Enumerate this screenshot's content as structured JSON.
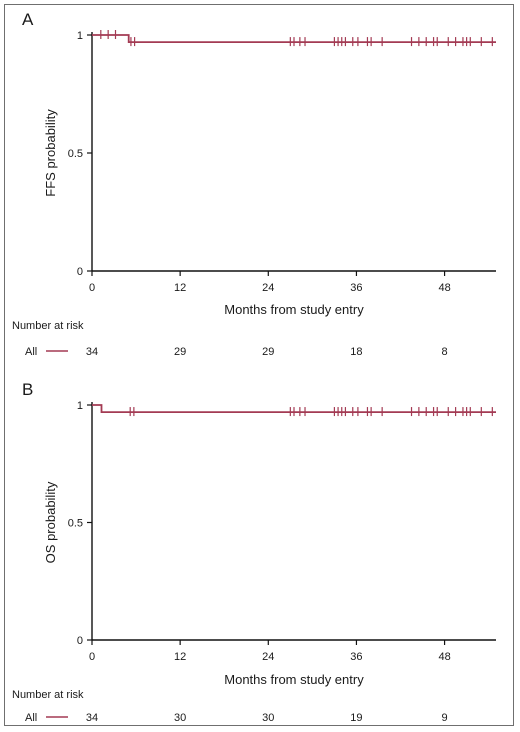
{
  "curve_color": "#a33a53",
  "chart_data": [
    {
      "type": "line",
      "panel_label": "A",
      "ylabel": "FFS probability",
      "xlabel": "Months from study entry",
      "xlim": [
        0,
        55
      ],
      "ylim": [
        0,
        1
      ],
      "xticks": [
        "0",
        "12",
        "24",
        "36",
        "48"
      ],
      "xtick_values": [
        0,
        12,
        24,
        36,
        48
      ],
      "yticks": [
        "0",
        "0.5",
        "1"
      ],
      "ytick_values": [
        0,
        0.5,
        1
      ],
      "series": [
        {
          "step_points": [
            [
              0,
              1
            ],
            [
              5,
              1
            ],
            [
              5,
              0.97
            ],
            [
              55,
              0.97
            ]
          ],
          "censor_times": [
            1.2,
            2.2,
            3.2,
            5.3,
            5.8,
            27.0,
            27.5,
            28.3,
            29.0,
            33.0,
            33.5,
            34.0,
            34.5,
            35.5,
            36.2,
            37.5,
            38.0,
            39.5,
            43.5,
            44.5,
            45.5,
            46.5,
            47.0,
            48.5,
            49.5,
            50.5,
            51.0,
            51.5,
            53.0,
            54.5
          ]
        }
      ],
      "risk_table": {
        "header": "Number at risk",
        "row_label": "All",
        "times": [
          0,
          12,
          24,
          36,
          48
        ],
        "counts": [
          "34",
          "29",
          "29",
          "18",
          "8"
        ]
      }
    },
    {
      "type": "line",
      "panel_label": "B",
      "ylabel": "OS probability",
      "xlabel": "Months from study entry",
      "xlim": [
        0,
        55
      ],
      "ylim": [
        0,
        1
      ],
      "xticks": [
        "0",
        "12",
        "24",
        "36",
        "48"
      ],
      "xtick_values": [
        0,
        12,
        24,
        36,
        48
      ],
      "yticks": [
        "0",
        "0.5",
        "1"
      ],
      "ytick_values": [
        0,
        0.5,
        1
      ],
      "series": [
        {
          "step_points": [
            [
              0,
              1
            ],
            [
              1.3,
              1
            ],
            [
              1.3,
              0.97
            ],
            [
              55,
              0.97
            ]
          ],
          "censor_times": [
            5.2,
            5.7,
            27.0,
            27.5,
            28.3,
            29.0,
            33.0,
            33.5,
            34.0,
            34.5,
            35.5,
            36.2,
            37.5,
            38.0,
            39.5,
            43.5,
            44.5,
            45.5,
            46.5,
            47.0,
            48.5,
            49.5,
            50.5,
            51.0,
            51.5,
            53.0,
            54.5
          ]
        }
      ],
      "risk_table": {
        "header": "Number at risk",
        "row_label": "All",
        "times": [
          0,
          12,
          24,
          36,
          48
        ],
        "counts": [
          "34",
          "30",
          "30",
          "19",
          "9"
        ]
      }
    }
  ]
}
